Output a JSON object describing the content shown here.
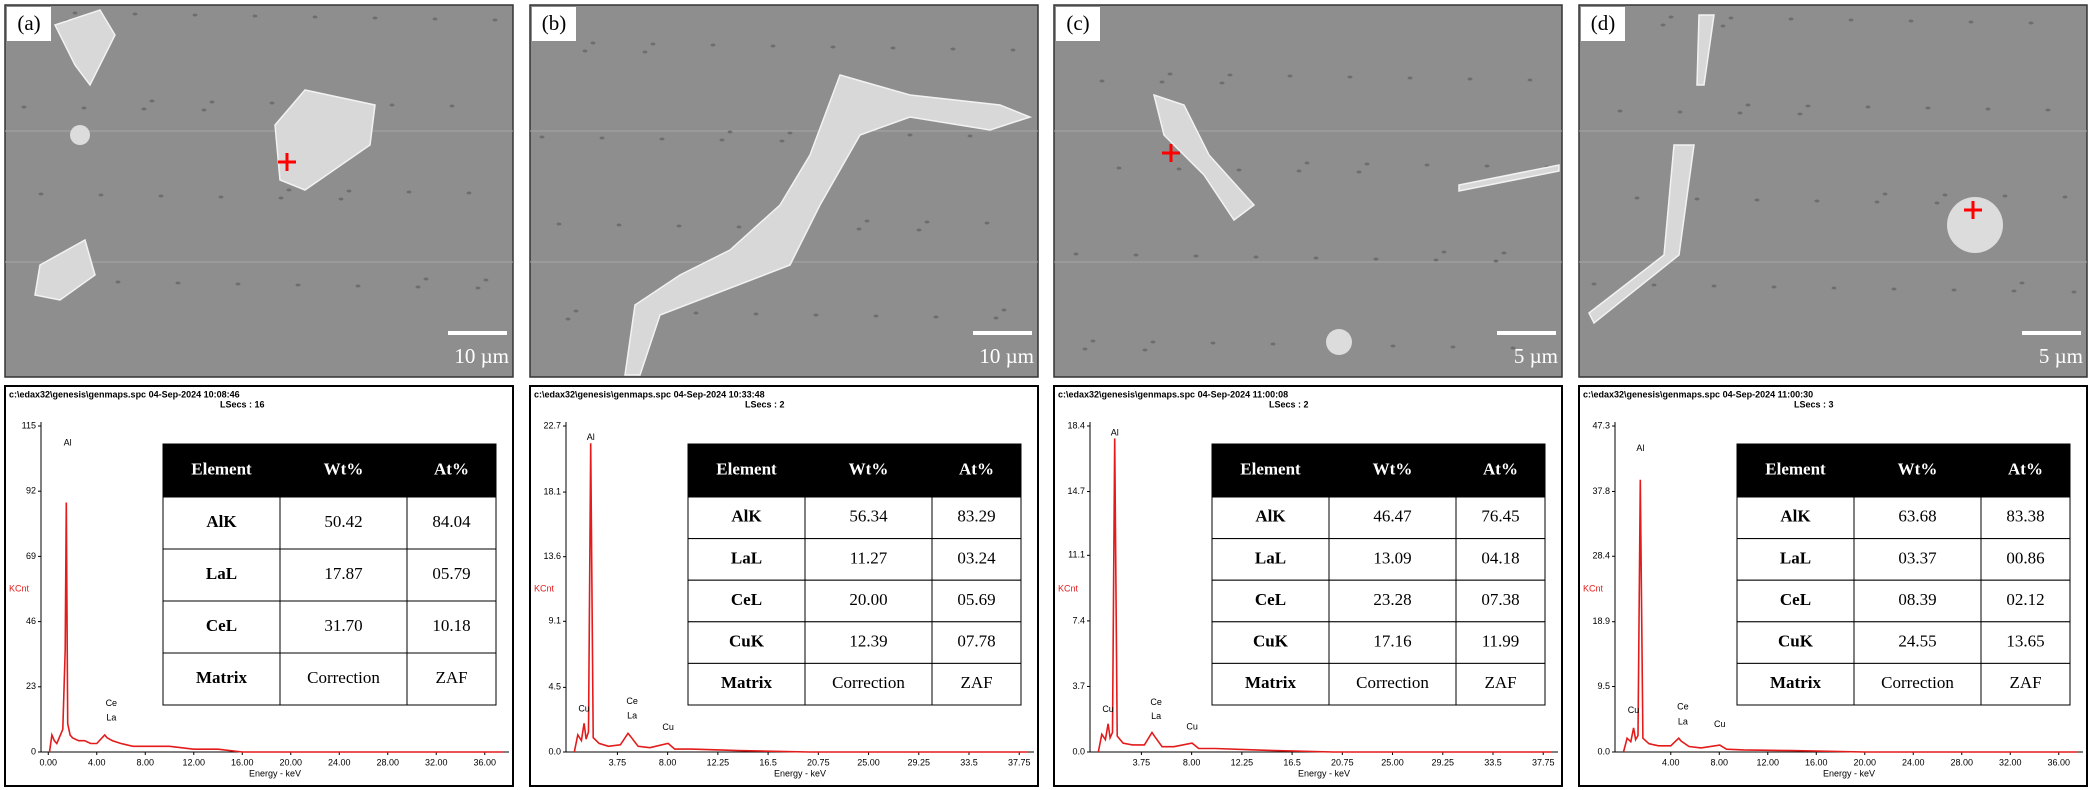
{
  "panels": [
    {
      "label": "(a)",
      "scale_bar": "10 µm",
      "spectrum": {
        "type": "line",
        "header": "c:\\edax32\\genesis\\genmaps.spc  04-Sep-2024 10:08:46",
        "subheader": "LSecs : 16",
        "ylabel": "KCnt",
        "xlabel": "Energy - keV",
        "color": "#e31b1b",
        "x": [
          0.1,
          0.3,
          0.5,
          0.7,
          0.9,
          1.2,
          1.4,
          1.49,
          1.6,
          1.8,
          2.0,
          2.5,
          3.0,
          3.5,
          4.0,
          4.65,
          4.85,
          5.3,
          6.0,
          7.0,
          8.0,
          10.0,
          12.0,
          14.0,
          16.0,
          20.0,
          30.0,
          37.5
        ],
        "values": [
          0,
          6,
          4,
          3,
          5,
          8,
          36,
          88,
          10,
          6,
          5,
          4,
          4,
          3,
          3,
          6,
          5,
          4,
          3,
          2,
          2,
          2,
          1,
          1,
          0,
          0,
          0,
          0
        ],
        "xlim": [
          -0.6,
          38
        ],
        "ylim": [
          0,
          115
        ],
        "xticks": [
          {
            "value": 0,
            "label": "0.00"
          },
          {
            "value": 4,
            "label": "4.00"
          },
          {
            "value": 8,
            "label": "8.00"
          },
          {
            "value": 12,
            "label": "12.00"
          },
          {
            "value": 16,
            "label": "16.00"
          },
          {
            "value": 20,
            "label": "20.00"
          },
          {
            "value": 24,
            "label": "24.00"
          },
          {
            "value": 28,
            "label": "28.00"
          },
          {
            "value": 32,
            "label": "32.00"
          },
          {
            "value": 36,
            "label": "36.00"
          }
        ],
        "yticks": [
          0,
          23,
          46,
          69,
          92,
          115
        ],
        "peak_labels": [
          {
            "text": "Al",
            "x": 1.6,
            "y": 109
          },
          {
            "text": "Ce",
            "x": 5.2,
            "y": 17
          },
          {
            "text": "La",
            "x": 5.2,
            "y": 12
          }
        ]
      },
      "table": {
        "header": [
          "Element",
          "Wt%",
          "At%"
        ],
        "rows": [
          [
            "AlK",
            "50.42",
            "84.04"
          ],
          [
            "LaL",
            "17.87",
            "05.79"
          ],
          [
            "CeL",
            "31.70",
            "10.18"
          ],
          [
            "Matrix",
            "Correction",
            "ZAF"
          ]
        ]
      }
    },
    {
      "label": "(b)",
      "scale_bar": "10 µm",
      "spectrum": {
        "type": "line",
        "header": "c:\\edax32\\genesis\\genmaps.spc  04-Sep-2024 10:33:48",
        "subheader": "LSecs : 2",
        "ylabel": "KCnt",
        "xlabel": "Energy - keV",
        "color": "#e31b1b",
        "x": [
          0.1,
          0.4,
          0.7,
          0.93,
          1.1,
          1.3,
          1.49,
          1.7,
          2.2,
          3.0,
          4.0,
          4.65,
          4.85,
          5.5,
          6.5,
          8.04,
          8.6,
          10.0,
          14.0,
          20.0,
          30.0,
          38.5
        ],
        "values": [
          0,
          1.2,
          0.8,
          2.0,
          0.9,
          1.4,
          21.5,
          1.0,
          0.6,
          0.4,
          0.5,
          1.3,
          1.1,
          0.4,
          0.3,
          0.6,
          0.2,
          0.2,
          0.1,
          0,
          0,
          0
        ],
        "xlim": [
          -0.6,
          39
        ],
        "ylim": [
          0,
          22.7
        ],
        "xticks": [
          3.75,
          {
            "value": 8,
            "label": "8.00"
          },
          12.25,
          16.5,
          20.75,
          {
            "value": 25,
            "label": "25.00"
          },
          29.25,
          33.5,
          37.75
        ],
        "yticks": [
          {
            "value": 0,
            "label": "0.0"
          },
          4.5,
          9.1,
          13.6,
          18.1,
          22.7
        ],
        "peak_labels": [
          {
            "text": "Al",
            "x": 1.49,
            "y": 21.9
          },
          {
            "text": "Cu",
            "x": 0.93,
            "y": 3.0
          },
          {
            "text": "Ce",
            "x": 5.0,
            "y": 3.5
          },
          {
            "text": "La",
            "x": 5.0,
            "y": 2.5
          },
          {
            "text": "Cu",
            "x": 8.04,
            "y": 1.7
          }
        ]
      },
      "table": {
        "header": [
          "Element",
          "Wt%",
          "At%"
        ],
        "rows": [
          [
            "AlK",
            "56.34",
            "83.29"
          ],
          [
            "LaL",
            "11.27",
            "03.24"
          ],
          [
            "CeL",
            "20.00",
            "05.69"
          ],
          [
            "CuK",
            "12.39",
            "07.78"
          ],
          [
            "Matrix",
            "Correction",
            "ZAF"
          ]
        ]
      }
    },
    {
      "label": "(c)",
      "scale_bar": "5 µm",
      "spectrum": {
        "type": "line",
        "header": "c:\\edax32\\genesis\\genmaps.spc  04-Sep-2024 11:00:08",
        "subheader": "LSecs : 2",
        "ylabel": "KCnt",
        "xlabel": "Energy - keV",
        "color": "#e31b1b",
        "x": [
          0.1,
          0.4,
          0.7,
          0.93,
          1.1,
          1.3,
          1.49,
          1.7,
          2.2,
          3.0,
          4.0,
          4.65,
          4.85,
          5.5,
          6.5,
          8.04,
          8.6,
          10.0,
          14.0,
          20.0,
          30.0,
          38.5
        ],
        "values": [
          0,
          1.0,
          0.7,
          1.6,
          0.8,
          1.1,
          17.7,
          0.9,
          0.5,
          0.4,
          0.4,
          1.1,
          0.9,
          0.3,
          0.3,
          0.5,
          0.2,
          0.2,
          0.1,
          0,
          0,
          0
        ],
        "xlim": [
          -0.6,
          39
        ],
        "ylim": [
          0,
          18.4
        ],
        "xticks": [
          3.75,
          {
            "value": 8,
            "label": "8.00"
          },
          12.25,
          16.5,
          20.75,
          {
            "value": 25,
            "label": "25.00"
          },
          29.25,
          33.5,
          37.75
        ],
        "yticks": [
          {
            "value": 0,
            "label": "0.0"
          },
          3.7,
          7.4,
          11.1,
          14.7,
          18.4
        ],
        "peak_labels": [
          {
            "text": "Al",
            "x": 1.49,
            "y": 18.0
          },
          {
            "text": "Cu",
            "x": 0.93,
            "y": 2.4
          },
          {
            "text": "Ce",
            "x": 5.0,
            "y": 2.8
          },
          {
            "text": "La",
            "x": 5.0,
            "y": 2.0
          },
          {
            "text": "Cu",
            "x": 8.04,
            "y": 1.4
          }
        ]
      },
      "table": {
        "header": [
          "Element",
          "Wt%",
          "At%"
        ],
        "rows": [
          [
            "AlK",
            "46.47",
            "76.45"
          ],
          [
            "LaL",
            "13.09",
            "04.18"
          ],
          [
            "CeL",
            "23.28",
            "07.38"
          ],
          [
            "CuK",
            "17.16",
            "11.99"
          ],
          [
            "Matrix",
            "Correction",
            "ZAF"
          ]
        ]
      }
    },
    {
      "label": "(d)",
      "scale_bar": "5 µm",
      "spectrum": {
        "type": "line",
        "header": "c:\\edax32\\genesis\\genmaps.spc  04-Sep-2024 11:00:30",
        "subheader": "LSecs : 3",
        "ylabel": "KCnt",
        "xlabel": "Energy - keV",
        "color": "#e31b1b",
        "x": [
          0.1,
          0.4,
          0.7,
          0.93,
          1.1,
          1.3,
          1.49,
          1.7,
          2.2,
          3.0,
          4.0,
          4.65,
          4.85,
          5.5,
          6.5,
          8.04,
          8.6,
          10.0,
          14.0,
          20.0,
          30.0,
          37.5
        ],
        "values": [
          0,
          2.0,
          1.5,
          3.5,
          1.8,
          2.4,
          39.5,
          2.0,
          1.2,
          0.9,
          0.9,
          2.0,
          1.6,
          0.8,
          0.6,
          1.0,
          0.4,
          0.3,
          0.2,
          0,
          0,
          0
        ],
        "xlim": [
          -0.6,
          38
        ],
        "ylim": [
          0,
          47.3
        ],
        "xticks": [
          {
            "value": 4,
            "label": "4.00"
          },
          {
            "value": 8,
            "label": "8.00"
          },
          {
            "value": 12,
            "label": "12.00"
          },
          {
            "value": 16,
            "label": "16.00"
          },
          {
            "value": 20,
            "label": "20.00"
          },
          {
            "value": 24,
            "label": "24.00"
          },
          {
            "value": 28,
            "label": "28.00"
          },
          {
            "value": 32,
            "label": "32.00"
          },
          {
            "value": 36,
            "label": "36.00"
          }
        ],
        "yticks": [
          {
            "value": 0,
            "label": "0.0"
          },
          9.5,
          18.9,
          28.4,
          37.8,
          47.3
        ],
        "peak_labels": [
          {
            "text": "Al",
            "x": 1.49,
            "y": 44
          },
          {
            "text": "Cu",
            "x": 0.93,
            "y": 6
          },
          {
            "text": "Ce",
            "x": 5.0,
            "y": 6.5
          },
          {
            "text": "La",
            "x": 5.0,
            "y": 4.3
          },
          {
            "text": "Cu",
            "x": 8.04,
            "y": 4
          }
        ]
      },
      "table": {
        "header": [
          "Element",
          "Wt%",
          "At%"
        ],
        "rows": [
          [
            "AlK",
            "63.68",
            "83.38"
          ],
          [
            "LaL",
            "03.37",
            "00.86"
          ],
          [
            "CeL",
            "08.39",
            "02.12"
          ],
          [
            "CuK",
            "24.55",
            "13.65"
          ],
          [
            "Matrix",
            "Correction",
            "ZAF"
          ]
        ]
      }
    }
  ]
}
